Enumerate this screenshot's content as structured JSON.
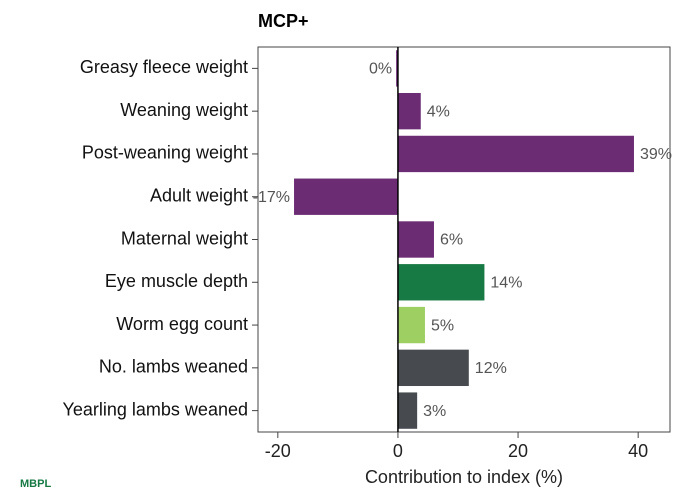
{
  "chart_data": {
    "type": "barh",
    "title": "MCP+",
    "categories": [
      "Greasy fleece weight",
      "Weaning weight",
      "Post-weaning weight",
      "Adult weight",
      "Maternal weight",
      "Eye muscle depth",
      "Worm egg count",
      "No. lambs weaned",
      "Yearling lambs weaned"
    ],
    "values": [
      -0.3,
      3.8,
      39.3,
      -17.3,
      6,
      14.4,
      4.5,
      11.8,
      3.2
    ],
    "value_labels": [
      "0%",
      "4%",
      "39%",
      "-17%",
      "6%",
      "14%",
      "5%",
      "12%",
      "3%"
    ],
    "colors": [
      "#6b2c74",
      "#6b2c74",
      "#6b2c74",
      "#6b2c74",
      "#6b2c74",
      "#177a45",
      "#9ecf63",
      "#474b4f",
      "#474b4f"
    ],
    "xlabel": "Contribution to index (%)",
    "xlim": [
      -23.3,
      45.3
    ],
    "xticks": [
      -20,
      0,
      20,
      40
    ],
    "logo_text": "MBPL"
  }
}
